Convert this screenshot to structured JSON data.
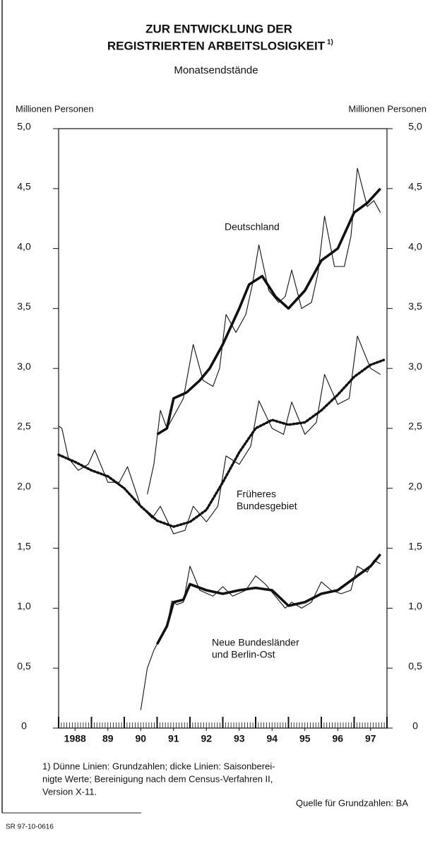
{
  "chart_data": {
    "type": "line",
    "title": [
      "ZUR ENTWICKLUNG DER",
      "REGISTRIERTEN ARBEITSLOSIGKEIT"
    ],
    "title_note": "1)",
    "subtitle": "Monatsendstände",
    "ylabel": "Millionen Personen",
    "y2label": "Millionen Personen",
    "xlim": [
      1988,
      1998
    ],
    "xticks": [
      {
        "value": 1988.5,
        "label": "1988"
      },
      {
        "value": 1989.5,
        "label": "89"
      },
      {
        "value": 1990.5,
        "label": "90"
      },
      {
        "value": 1991.5,
        "label": "91"
      },
      {
        "value": 1992.5,
        "label": "92"
      },
      {
        "value": 1993.5,
        "label": "93"
      },
      {
        "value": 1994.5,
        "label": "94"
      },
      {
        "value": 1995.5,
        "label": "95"
      },
      {
        "value": 1996.5,
        "label": "96"
      },
      {
        "value": 1997.5,
        "label": "97"
      }
    ],
    "ylim": [
      0,
      5
    ],
    "yticks": [
      0,
      {
        "value": 0.5,
        "label": "0,5"
      },
      {
        "value": 1,
        "label": "1,0"
      },
      {
        "value": 1.5,
        "label": "1,5"
      },
      {
        "value": 2,
        "label": "2,0"
      },
      {
        "value": 2.5,
        "label": "2,5"
      },
      {
        "value": 3,
        "label": "3,0"
      },
      {
        "value": 3.5,
        "label": "3,5"
      },
      {
        "value": 4,
        "label": "4,0"
      },
      {
        "value": 4.5,
        "label": "4,5"
      },
      {
        "value": 5,
        "label": "5,0"
      }
    ],
    "y2lim": [
      0,
      5
    ],
    "y2ticks": [
      0,
      {
        "value": 0.5,
        "label": "0,5"
      },
      {
        "value": 1,
        "label": "1,0"
      },
      {
        "value": 1.5,
        "label": "1,5"
      },
      {
        "value": 2,
        "label": "2,0"
      },
      {
        "value": 2.5,
        "label": "2,5"
      },
      {
        "value": 3,
        "label": "3,0"
      },
      {
        "value": 3.5,
        "label": "3,5"
      },
      {
        "value": 4,
        "label": "4,0"
      },
      {
        "value": 4.5,
        "label": "4,5"
      },
      {
        "value": 5,
        "label": "5,0"
      }
    ],
    "series": [
      {
        "color": "#111",
        "style": "thin",
        "x": [
          1990.7,
          1990.9,
          1991.1,
          1991.3,
          1991.5,
          1991.8,
          1992.1,
          1992.4,
          1992.7,
          1992.9,
          1993.1,
          1993.4,
          1993.7,
          1993.9,
          1994.1,
          1994.4,
          1994.7,
          1994.9,
          1995.1,
          1995.4,
          1995.7,
          1995.9,
          1996.1,
          1996.4,
          1996.7,
          1996.9,
          1997.1,
          1997.4,
          1997.6,
          1997.8
        ],
        "values": [
          1.95,
          2.2,
          2.65,
          2.5,
          2.6,
          2.75,
          3.2,
          2.9,
          2.85,
          3.0,
          3.45,
          3.3,
          3.45,
          3.7,
          4.03,
          3.65,
          3.55,
          3.6,
          3.82,
          3.5,
          3.55,
          3.8,
          4.27,
          3.85,
          3.85,
          4.1,
          4.67,
          4.35,
          4.4,
          4.3
        ]
      },
      {
        "color": "#111",
        "style": "thick",
        "x": [
          1991.0,
          1991.3,
          1991.5,
          1991.9,
          1992.3,
          1992.6,
          1993.0,
          1993.5,
          1993.8,
          1994.2,
          1994.6,
          1995.0,
          1995.5,
          1996.0,
          1996.5,
          1997.0,
          1997.4,
          1997.8
        ],
        "values": [
          2.45,
          2.5,
          2.75,
          2.8,
          2.9,
          3.0,
          3.2,
          3.5,
          3.7,
          3.77,
          3.6,
          3.5,
          3.65,
          3.9,
          4.0,
          4.3,
          4.38,
          4.5
        ]
      },
      {
        "color": "#111",
        "style": "thin",
        "x": [
          1988.0,
          1988.1,
          1988.3,
          1988.6,
          1988.9,
          1989.1,
          1989.5,
          1989.85,
          1990.1,
          1990.5,
          1990.85,
          1991.1,
          1991.5,
          1991.85,
          1992.1,
          1992.5,
          1992.85,
          1993.1,
          1993.5,
          1993.85,
          1994.1,
          1994.5,
          1994.85,
          1995.1,
          1995.5,
          1995.85,
          1996.1,
          1996.5,
          1996.85,
          1997.1,
          1997.5,
          1997.8
        ],
        "values": [
          2.52,
          2.5,
          2.25,
          2.15,
          2.2,
          2.32,
          2.05,
          2.05,
          2.18,
          1.85,
          1.75,
          1.85,
          1.62,
          1.65,
          1.85,
          1.72,
          1.85,
          2.27,
          2.2,
          2.35,
          2.73,
          2.5,
          2.45,
          2.72,
          2.45,
          2.55,
          2.95,
          2.7,
          2.75,
          3.27,
          3.0,
          2.95
        ]
      },
      {
        "color": "#111",
        "style": "dotted",
        "x": [
          1988.0,
          1988.5,
          1989.0,
          1989.5,
          1990.0,
          1990.5,
          1991.0,
          1991.5,
          1992.0,
          1992.5,
          1993.0,
          1993.5,
          1994.0,
          1994.5,
          1995.0,
          1995.5,
          1996.0,
          1996.5,
          1997.0,
          1997.5,
          1997.9
        ],
        "values": [
          2.28,
          2.22,
          2.15,
          2.1,
          2.0,
          1.85,
          1.73,
          1.68,
          1.72,
          1.82,
          2.05,
          2.3,
          2.5,
          2.57,
          2.53,
          2.55,
          2.65,
          2.78,
          2.93,
          3.03,
          3.07
        ]
      },
      {
        "color": "#111",
        "style": "thin",
        "x": [
          1990.5,
          1990.7,
          1990.9,
          1991.1,
          1991.3,
          1991.45,
          1991.6,
          1991.8,
          1992.0,
          1992.3,
          1992.7,
          1993.0,
          1993.3,
          1993.7,
          1994.0,
          1994.3,
          1994.6,
          1994.9,
          1995.1,
          1995.4,
          1995.7,
          1996.0,
          1996.3,
          1996.6,
          1996.9,
          1997.1,
          1997.4,
          1997.6,
          1997.8
        ],
        "values": [
          0.15,
          0.5,
          0.65,
          0.75,
          0.85,
          1.06,
          1.03,
          1.05,
          1.35,
          1.15,
          1.1,
          1.18,
          1.1,
          1.15,
          1.27,
          1.2,
          1.1,
          1.0,
          1.05,
          1.0,
          1.05,
          1.22,
          1.15,
          1.12,
          1.15,
          1.35,
          1.3,
          1.4,
          1.37
        ]
      },
      {
        "color": "#111",
        "style": "thick",
        "x": [
          1991.0,
          1991.3,
          1991.5,
          1991.8,
          1992.0,
          1992.5,
          1993.0,
          1993.5,
          1994.0,
          1994.5,
          1995.0,
          1995.5,
          1996.0,
          1996.5,
          1997.0,
          1997.5,
          1997.8
        ],
        "values": [
          0.7,
          0.85,
          1.05,
          1.07,
          1.2,
          1.15,
          1.12,
          1.15,
          1.17,
          1.15,
          1.02,
          1.05,
          1.12,
          1.15,
          1.25,
          1.35,
          1.45
        ]
      }
    ],
    "annotations": [
      [
        "Deutschland"
      ],
      [
        "Früheres",
        "Bundesgebiet"
      ],
      [
        "Neue Bundesländer",
        "und Berlin-Ost"
      ]
    ],
    "footnote": [
      "1) Dünne Linien: Grundzahlen; dicke Linien: Saisonberei-",
      "nigte Werte; Bereinigung nach dem Census-Verfahren II,",
      "Version X-11."
    ],
    "source": "Quelle für Grundzahlen: BA",
    "code": "SR 97-10-0616"
  }
}
